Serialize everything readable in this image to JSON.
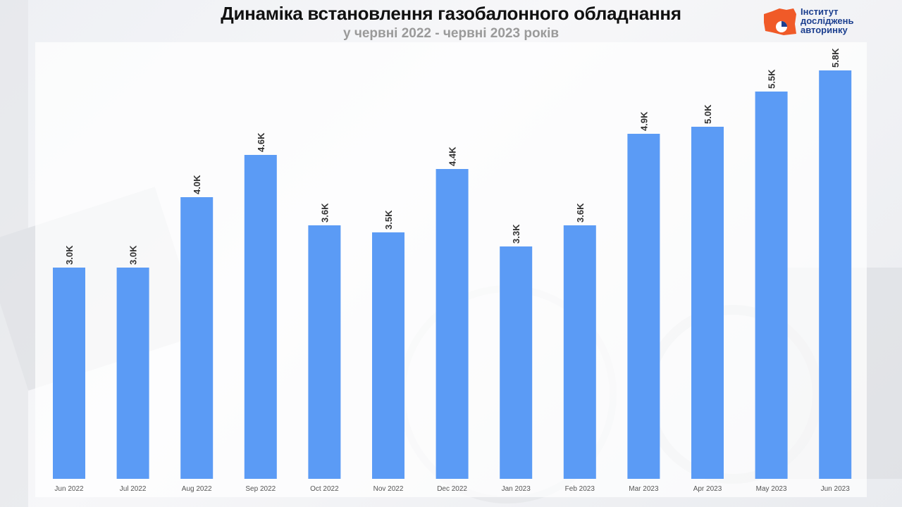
{
  "header": {
    "title": "Динаміка встановлення газобалонного обладнання",
    "subtitle": "у червні 2022 - червні 2023 років"
  },
  "logo": {
    "line1": "Інститут",
    "line2": "досліджень",
    "line3": "авторинку",
    "accent_color": "#f05a28",
    "text_color": "#1c3f8f"
  },
  "chart_data": {
    "type": "bar",
    "categories": [
      "Jun 2022",
      "Jul 2022",
      "Aug 2022",
      "Sep 2022",
      "Oct 2022",
      "Nov 2022",
      "Dec 2022",
      "Jan 2023",
      "Feb 2023",
      "Mar 2023",
      "Apr 2023",
      "May 2023",
      "Jun 2023"
    ],
    "values": [
      3.0,
      3.0,
      4.0,
      4.6,
      3.6,
      3.5,
      4.4,
      3.3,
      3.6,
      4.9,
      5.0,
      5.5,
      5.8
    ],
    "labels": [
      "3.0K",
      "3.0K",
      "4.0K",
      "4.6K",
      "3.6K",
      "3.5K",
      "4.4K",
      "3.3K",
      "3.6K",
      "4.9K",
      "5.0K",
      "5.5K",
      "5.8K"
    ],
    "unit": "thousands",
    "bar_color": "#5b9bf5",
    "ylim": [
      0,
      6.3
    ],
    "grid": false,
    "legend": "none"
  }
}
